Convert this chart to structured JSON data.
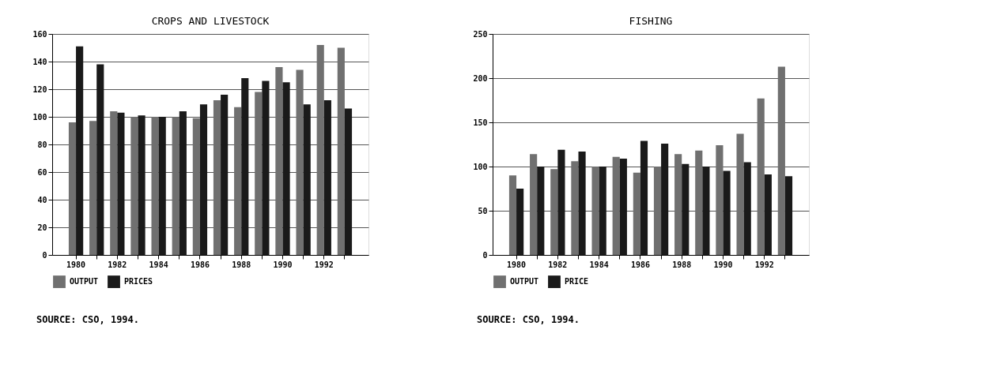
{
  "chart_data": [
    {
      "type": "bar",
      "title": "CROPS AND LIVESTOCK",
      "categories": [
        "1980",
        null,
        "1982",
        null,
        "1984",
        null,
        "1986",
        null,
        "1988",
        null,
        "1990",
        null,
        "1992",
        null
      ],
      "series": [
        {
          "name": "OUTPUT",
          "color": "#707070",
          "values": [
            96,
            97,
            104,
            100,
            100,
            100,
            99,
            112,
            107,
            118,
            136,
            134,
            152,
            150
          ]
        },
        {
          "name": "PRICES",
          "color": "#1a1a1a",
          "values": [
            151,
            138,
            103,
            101,
            100,
            104,
            109,
            116,
            128,
            126,
            125,
            109,
            112,
            106
          ]
        }
      ],
      "ylim": [
        0,
        160
      ],
      "yticks": [
        0,
        20,
        40,
        60,
        80,
        100,
        120,
        140,
        160
      ],
      "grid": "y",
      "legend": "bottom",
      "annotations": [
        "SOURCE:  CSO, 1994."
      ]
    },
    {
      "type": "bar",
      "title": "FISHING",
      "categories": [
        "1980",
        null,
        "1982",
        null,
        "1984",
        null,
        "1986",
        null,
        "1988",
        null,
        "1990",
        null,
        "1992",
        null
      ],
      "series": [
        {
          "name": "OUTPUT",
          "color": "#707070",
          "values": [
            90,
            114,
            97,
            106,
            100,
            111,
            93,
            100,
            114,
            118,
            124,
            137,
            177,
            213
          ]
        },
        {
          "name": "PRICE",
          "color": "#1a1a1a",
          "values": [
            75,
            100,
            119,
            117,
            100,
            109,
            129,
            126,
            103,
            100,
            95,
            105,
            91,
            89
          ]
        }
      ],
      "ylim": [
        0,
        250
      ],
      "yticks": [
        0,
        50,
        100,
        150,
        200,
        250
      ],
      "grid": "y",
      "legend": "bottom",
      "annotations": [
        "SOURCE:  CSO, 1994."
      ]
    }
  ]
}
